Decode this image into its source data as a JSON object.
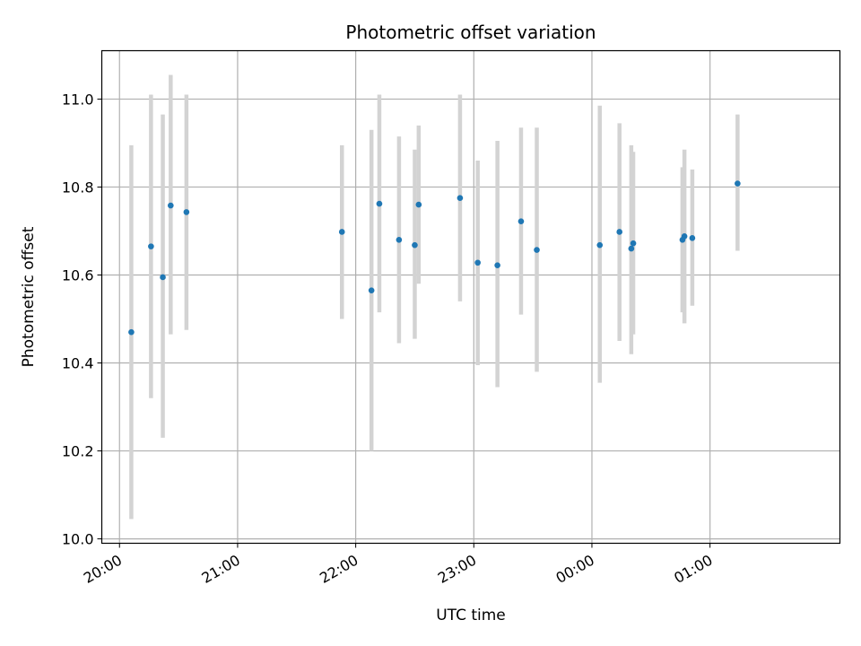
{
  "chart_data": {
    "type": "scatter",
    "title": "Photometric offset variation",
    "xlabel": "UTC time",
    "ylabel": "Photometric offset",
    "x_axis": {
      "kind": "time",
      "range": [
        "19:51",
        "02:06"
      ],
      "ticks": [
        "20:00",
        "21:00",
        "22:00",
        "23:00",
        "00:00",
        "01:00"
      ]
    },
    "ylim": [
      9.99,
      11.11
    ],
    "yticks": [
      "10.0",
      "10.2",
      "10.4",
      "10.6",
      "10.8",
      "11.0"
    ],
    "grid": true,
    "colors": {
      "marker": "#1f77b4",
      "errorbar": "#d3d3d3",
      "grid": "#b0b0b0"
    },
    "series": [
      {
        "points": [
          {
            "x": "20:06",
            "y": 10.47,
            "lo": 10.045,
            "hi": 10.895
          },
          {
            "x": "20:16",
            "y": 10.665,
            "lo": 10.32,
            "hi": 11.01
          },
          {
            "x": "20:22",
            "y": 10.595,
            "lo": 10.23,
            "hi": 10.965
          },
          {
            "x": "20:26",
            "y": 10.758,
            "lo": 10.465,
            "hi": 11.055
          },
          {
            "x": "20:34",
            "y": 10.743,
            "lo": 10.475,
            "hi": 11.01
          },
          {
            "x": "21:53",
            "y": 10.698,
            "lo": 10.5,
            "hi": 10.895
          },
          {
            "x": "22:08",
            "y": 10.565,
            "lo": 10.2,
            "hi": 10.93
          },
          {
            "x": "22:12",
            "y": 10.762,
            "lo": 10.515,
            "hi": 11.01
          },
          {
            "x": "22:22",
            "y": 10.68,
            "lo": 10.445,
            "hi": 10.915
          },
          {
            "x": "22:30",
            "y": 10.668,
            "lo": 10.455,
            "hi": 10.885
          },
          {
            "x": "22:32",
            "y": 10.76,
            "lo": 10.58,
            "hi": 10.94
          },
          {
            "x": "22:53",
            "y": 10.775,
            "lo": 10.54,
            "hi": 11.01
          },
          {
            "x": "23:02",
            "y": 10.628,
            "lo": 10.395,
            "hi": 10.86
          },
          {
            "x": "23:12",
            "y": 10.622,
            "lo": 10.345,
            "hi": 10.905
          },
          {
            "x": "23:24",
            "y": 10.722,
            "lo": 10.51,
            "hi": 10.935
          },
          {
            "x": "23:32",
            "y": 10.657,
            "lo": 10.38,
            "hi": 10.935
          },
          {
            "x": "00:04",
            "y": 10.668,
            "lo": 10.355,
            "hi": 10.985
          },
          {
            "x": "00:14",
            "y": 10.698,
            "lo": 10.45,
            "hi": 10.945
          },
          {
            "x": "00:20",
            "y": 10.66,
            "lo": 10.42,
            "hi": 10.895
          },
          {
            "x": "00:21",
            "y": 10.672,
            "lo": 10.465,
            "hi": 10.88
          },
          {
            "x": "00:46",
            "y": 10.68,
            "lo": 10.515,
            "hi": 10.845
          },
          {
            "x": "00:47",
            "y": 10.688,
            "lo": 10.49,
            "hi": 10.885
          },
          {
            "x": "00:51",
            "y": 10.684,
            "lo": 10.53,
            "hi": 10.84
          },
          {
            "x": "01:14",
            "y": 10.808,
            "lo": 10.655,
            "hi": 10.965
          }
        ]
      }
    ]
  }
}
